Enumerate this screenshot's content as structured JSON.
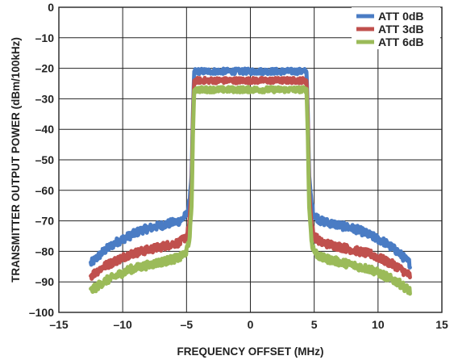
{
  "chart_data": {
    "type": "line",
    "title": "",
    "xlabel": "FREQUENCY OFFSET (MHz)",
    "ylabel": "TRANSMITTER OUTPUT POWER (dBm/100kHz)",
    "xlim": [
      -15,
      15
    ],
    "ylim": [
      -100,
      0
    ],
    "x_ticks": [
      -15,
      -10,
      -5,
      0,
      5,
      10,
      15
    ],
    "y_ticks": [
      0,
      -10,
      -20,
      -30,
      -40,
      -50,
      -60,
      -70,
      -80,
      -90,
      -100
    ],
    "x_tick_labels": [
      "–15",
      "–10",
      "–5",
      "0",
      "5",
      "10",
      "15"
    ],
    "y_tick_labels": [
      "0",
      "–10",
      "–20",
      "–30",
      "–40",
      "–50",
      "–60",
      "–70",
      "–80",
      "–90",
      "–100"
    ],
    "grid": true,
    "legend_position": "top-right",
    "series": [
      {
        "name": "ATT 0dB",
        "color": "#4a7cc4",
        "x": [
          -12.5,
          -11.5,
          -10.5,
          -9.5,
          -8.5,
          -7.5,
          -6.5,
          -5.5,
          -5.0,
          -4.8,
          -4.6,
          -4.5,
          -4.4,
          -3.0,
          -2.0,
          -1.0,
          0.0,
          1.0,
          2.0,
          3.0,
          4.4,
          4.5,
          4.6,
          4.8,
          5.0,
          5.5,
          6.5,
          7.5,
          8.5,
          9.5,
          10.5,
          11.5,
          12.5
        ],
        "y": [
          -84,
          -80,
          -77,
          -75,
          -73,
          -72,
          -71,
          -70,
          -68,
          -65,
          -55,
          -35,
          -21,
          -21,
          -21,
          -21,
          -21,
          -21,
          -21,
          -21,
          -21,
          -35,
          -55,
          -65,
          -68,
          -70,
          -71,
          -72,
          -73,
          -75,
          -77,
          -80,
          -84
        ]
      },
      {
        "name": "ATT 3dB",
        "color": "#c0504d",
        "x": [
          -12.5,
          -11.5,
          -10.5,
          -9.5,
          -8.5,
          -7.5,
          -6.5,
          -5.5,
          -5.0,
          -4.8,
          -4.6,
          -4.5,
          -4.4,
          -3.0,
          -2.0,
          -1.0,
          0.0,
          1.0,
          2.0,
          3.0,
          4.4,
          4.5,
          4.6,
          4.8,
          5.0,
          5.5,
          6.5,
          7.5,
          8.5,
          9.5,
          10.5,
          11.5,
          12.5
        ],
        "y": [
          -88,
          -85,
          -83,
          -81,
          -80,
          -79,
          -78,
          -77,
          -75,
          -72,
          -60,
          -38,
          -24,
          -24,
          -24,
          -24,
          -24,
          -24,
          -24,
          -24,
          -24,
          -38,
          -60,
          -72,
          -75,
          -77,
          -78,
          -79,
          -80,
          -81,
          -83,
          -85,
          -88
        ]
      },
      {
        "name": "ATT 6dB",
        "color": "#9bbb59",
        "x": [
          -12.5,
          -11.5,
          -10.5,
          -9.5,
          -8.5,
          -7.5,
          -6.5,
          -5.5,
          -5.0,
          -4.8,
          -4.6,
          -4.5,
          -4.4,
          -3.0,
          -2.0,
          -1.0,
          0.0,
          1.0,
          2.0,
          3.0,
          4.4,
          4.5,
          4.6,
          4.8,
          5.0,
          5.5,
          6.5,
          7.5,
          8.5,
          9.5,
          10.5,
          11.5,
          12.5
        ],
        "y": [
          -93,
          -90,
          -88,
          -86,
          -85,
          -84,
          -83,
          -82,
          -80,
          -77,
          -65,
          -42,
          -27,
          -27,
          -27,
          -27,
          -27,
          -27,
          -27,
          -27,
          -27,
          -42,
          -65,
          -77,
          -80,
          -82,
          -83,
          -84,
          -85,
          -86,
          -88,
          -90,
          -93
        ]
      }
    ]
  }
}
